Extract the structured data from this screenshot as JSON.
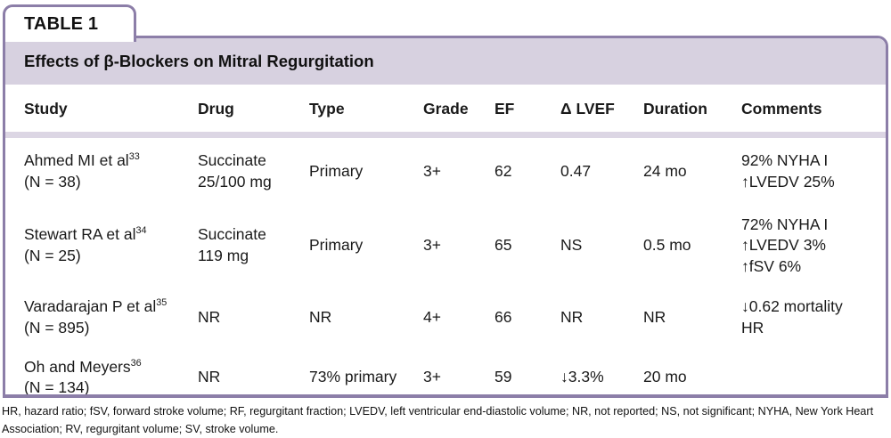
{
  "tab_label": "TABLE 1",
  "title": "Effects of β-Blockers on Mitral Regurgitation",
  "colors": {
    "border_purple": "#8c7ea8",
    "title_band": "#d7d1e0",
    "header_rule": "#dcd6e4",
    "text": "#111111"
  },
  "columns": {
    "study": "Study",
    "drug": "Drug",
    "type": "Type",
    "grade": "Grade",
    "ef": "EF",
    "delta_lvef": "Δ LVEF",
    "duration": "Duration",
    "comments": "Comments"
  },
  "rows": [
    {
      "study_name": "Ahmed MI et al",
      "study_ref": "33",
      "study_n": "(N = 38)",
      "drug": [
        "Succinate",
        "25/100 mg"
      ],
      "type": "Primary",
      "grade": "3+",
      "ef": "62",
      "delta_lvef": "0.47",
      "duration": "24 mo",
      "comments": [
        "92% NYHA I",
        "↑LVEDV 25%"
      ]
    },
    {
      "study_name": "Stewart RA et al",
      "study_ref": "34",
      "study_n": "(N = 25)",
      "drug": [
        "Succinate",
        "119 mg"
      ],
      "type": "Primary",
      "grade": "3+",
      "ef": "65",
      "delta_lvef": "NS",
      "duration": "0.5 mo",
      "comments": [
        "72% NYHA I",
        "↑LVEDV 3%",
        "↑fSV 6%"
      ]
    },
    {
      "study_name": "Varadarajan P et al",
      "study_ref": "35",
      "study_n": "(N = 895)",
      "drug": [
        "NR"
      ],
      "type": "NR",
      "grade": "4+",
      "ef": "66",
      "delta_lvef": "NR",
      "duration": "NR",
      "comments": [
        "↓0.62 mortality",
        "HR"
      ]
    },
    {
      "study_name": "Oh and Meyers",
      "study_ref": "36",
      "study_n": "(N = 134)",
      "drug": [
        "NR"
      ],
      "type": "73% primary",
      "grade": "3+",
      "ef": "59",
      "delta_lvef": "↓3.3%",
      "duration": "20 mo",
      "comments": []
    }
  ],
  "footnote": "HR, hazard ratio; fSV, forward stroke volume; RF, regurgitant fraction; LVEDV, left ventricular end-diastolic volume; NR, not reported; NS, not significant; NYHA, New York Heart Association; RV, regurgitant volume; SV, stroke volume."
}
